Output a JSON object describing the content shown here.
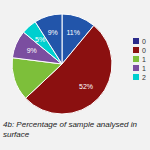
{
  "chart_data": {
    "type": "pie",
    "title": "4b: Percentage of sample analysed in surface",
    "values": [
      11,
      52,
      14,
      9,
      5,
      9
    ],
    "value_labels": [
      "11%",
      "52%",
      null,
      "9%",
      "5%",
      "9%"
    ],
    "colors": [
      "#2255AA",
      "#8B1010",
      "#7DBF3A",
      "#7B4EA0",
      "#00CFCF",
      "#2255AA"
    ],
    "series": [
      {
        "name": "0",
        "color": "#2B2B8B"
      },
      {
        "name": "0",
        "color": "#8B1010"
      },
      {
        "name": "1",
        "color": "#7DBF3A"
      },
      {
        "name": "1",
        "color": "#7B4EA0"
      },
      {
        "name": "2",
        "color": "#00CFCF"
      }
    ],
    "legend": "right"
  }
}
